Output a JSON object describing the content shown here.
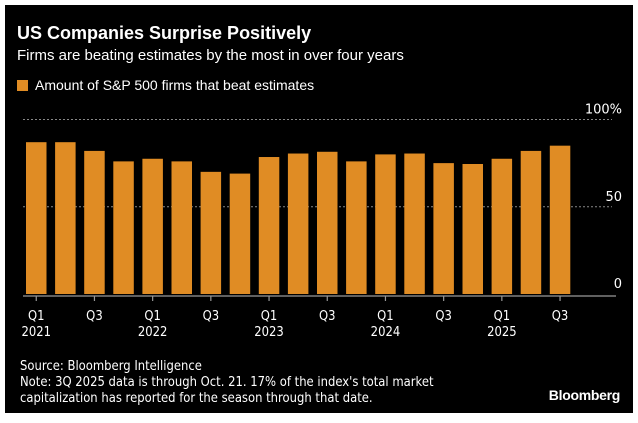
{
  "chart_data": {
    "type": "bar",
    "title": "US Companies Surprise Positively",
    "subtitle": "Firms are beating estimates by the most in over four years",
    "series": [
      {
        "name": "Amount of S&P 500 firms that beat estimates",
        "color": "#e08c24",
        "values": [
          87,
          87,
          82,
          76,
          77.5,
          76,
          70,
          69,
          78.5,
          80.5,
          81.5,
          76,
          80,
          80.5,
          75,
          74.5,
          77.5,
          82,
          85
        ]
      }
    ],
    "categories": [
      "Q1 2021",
      "Q2 2021",
      "Q3 2021",
      "Q4 2021",
      "Q1 2022",
      "Q2 2022",
      "Q3 2022",
      "Q4 2022",
      "Q1 2023",
      "Q2 2023",
      "Q3 2023",
      "Q4 2023",
      "Q1 2024",
      "Q2 2024",
      "Q3 2024",
      "Q4 2024",
      "Q1 2025",
      "Q2 2025",
      "Q3 2025"
    ],
    "x_tick_labels": [
      {
        "q": "Q1",
        "y": "2021"
      },
      {
        "q": "Q3",
        "y": ""
      },
      {
        "q": "Q1",
        "y": "2022"
      },
      {
        "q": "Q3",
        "y": ""
      },
      {
        "q": "Q1",
        "y": "2023"
      },
      {
        "q": "Q3",
        "y": ""
      },
      {
        "q": "Q1",
        "y": "2024"
      },
      {
        "q": "Q3",
        "y": ""
      },
      {
        "q": "Q1",
        "y": "2025"
      },
      {
        "q": "Q3",
        "y": ""
      }
    ],
    "y_ticks": [
      {
        "value": 100,
        "label": "100%"
      },
      {
        "value": 50,
        "label": "50"
      },
      {
        "value": 0,
        "label": "0"
      }
    ],
    "ylim": [
      0,
      100
    ],
    "xlabel": "",
    "ylabel": "",
    "legend": "top-left",
    "grid": true
  },
  "footer": {
    "source": "Source: Bloomberg Intelligence",
    "note1": "Note: 3Q 2025 data is through Oct. 21. 17% of the index's total market",
    "note2": "capitalization has reported for the season through that date.",
    "logo": "Bloomberg"
  }
}
